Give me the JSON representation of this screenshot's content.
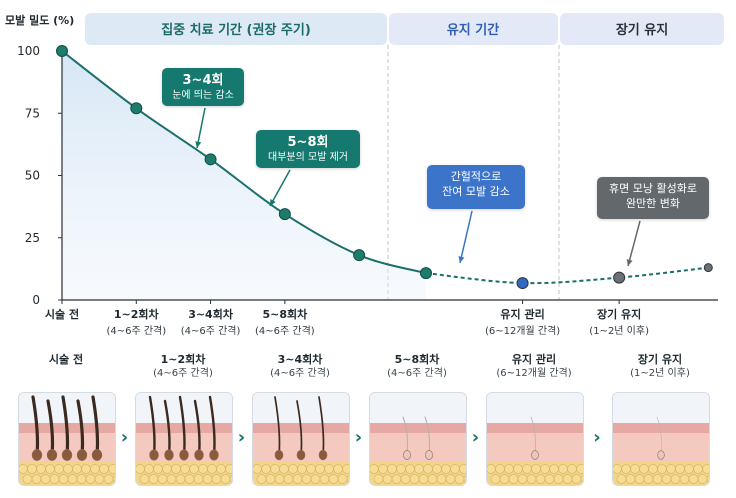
{
  "header": {
    "phase_intensive": "집중 치료 기간 (권장 주기)",
    "phase_maintain": "유지 기간",
    "phase_longterm": "장기 유지"
  },
  "colors": {
    "line": "#1b6f6a",
    "point": "#1e7c6a",
    "blue_point": "#3468c2",
    "gray_point": "#6b7075",
    "header_intensive": "#dde9f4",
    "header_maintain": "#e3e9f7"
  },
  "chart_data": {
    "type": "line",
    "title": "",
    "ylabel": "모발 밀도 (%)",
    "xlabel": "",
    "ylim": [
      0,
      100
    ],
    "yticks": [
      0,
      25,
      50,
      75,
      100
    ],
    "x_tick_labels": [
      {
        "line1": "시술 전",
        "line2": ""
      },
      {
        "line1": "1~2회차",
        "line2": "(4~6주 간격)"
      },
      {
        "line1": "3~4회차",
        "line2": "(4~6주 간격)"
      },
      {
        "line1": "5~8회차",
        "line2": "(4~6주 간격)"
      },
      {
        "line1": "유지 관리",
        "line2": "(6~12개월 간격)"
      },
      {
        "line1": "장기 유지",
        "line2": "(1~2년 이후)"
      }
    ],
    "series": [
      {
        "style": "solid",
        "points": [
          {
            "x": 0,
            "y": 100
          },
          {
            "x": 1,
            "y": 77
          },
          {
            "x": 2,
            "y": 56.5
          },
          {
            "x": 3,
            "y": 34.5
          },
          {
            "x": 4,
            "y": 18
          },
          {
            "x": 4.9,
            "y": 10.8
          }
        ]
      },
      {
        "style": "dashed",
        "points": [
          {
            "x": 4.9,
            "y": 10.8
          },
          {
            "x": 6.2,
            "y": 6.8
          },
          {
            "x": 7.5,
            "y": 9
          },
          {
            "x": 8.7,
            "y": 13
          }
        ]
      }
    ],
    "x_range": [
      0,
      8.75
    ],
    "label_positions": [
      0,
      1,
      2,
      3,
      6.2,
      7.5
    ]
  },
  "annotations": [
    {
      "line1": "3~4회",
      "line2": "눈에 띄는 감소"
    },
    {
      "line1": "5~8회",
      "line2": "대부분의 모발 제거"
    },
    {
      "line1": "간헐적으로",
      "line2": "잔여 모발 감소"
    },
    {
      "line1": "휴면 모낭 활성화로",
      "line2": "완만한 변화"
    }
  ],
  "stages": [
    {
      "title": "시술 전",
      "sub": "",
      "hairs": 5,
      "thickness": 3.2,
      "dark": true
    },
    {
      "title": "1~2회차",
      "sub": "(4~6주 간격)",
      "hairs": 5,
      "thickness": 2.4,
      "dark": true
    },
    {
      "title": "3~4회차",
      "sub": "(4~6주 간격)",
      "hairs": 3,
      "thickness": 1.7,
      "dark": true
    },
    {
      "title": "5~8회차",
      "sub": "(4~6주 간격)",
      "hairs": 2,
      "thickness": 1.1,
      "dark": false
    },
    {
      "title": "유지 관리",
      "sub": "(6~12개월 간격)",
      "hairs": 1,
      "thickness": 0.8,
      "dark": false
    },
    {
      "title": "장기 유지",
      "sub": "(1~2년 이후)",
      "hairs": 1,
      "thickness": 0.6,
      "dark": false
    }
  ]
}
